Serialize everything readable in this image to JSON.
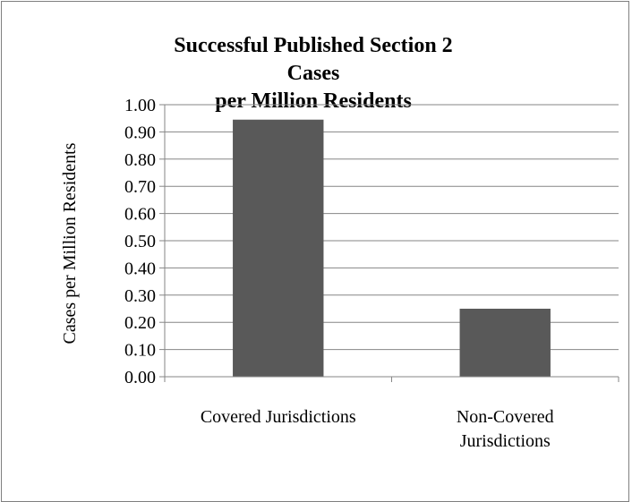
{
  "chart_data": {
    "type": "bar",
    "title": "Successful Published Section 2 Cases\nper Million Residents",
    "ylabel": "Cases per Million Residents",
    "xlabel": "",
    "categories": [
      "Covered Jurisdictions",
      "Non-Covered\nJurisdictions"
    ],
    "values": [
      0.945,
      0.25
    ],
    "ylim": [
      0,
      1.0
    ],
    "yticks": [
      "0.00",
      "0.10",
      "0.20",
      "0.30",
      "0.40",
      "0.50",
      "0.60",
      "0.70",
      "0.80",
      "0.90",
      "1.00"
    ],
    "grid": true,
    "legend": "none",
    "bar_color": "#595959",
    "grid_color": "#868686",
    "axis_color": "#868686"
  }
}
